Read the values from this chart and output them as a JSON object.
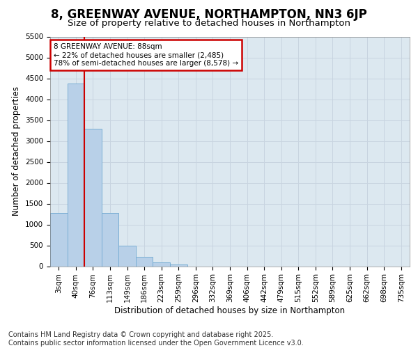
{
  "title": "8, GREENWAY AVENUE, NORTHAMPTON, NN3 6JP",
  "subtitle": "Size of property relative to detached houses in Northampton",
  "xlabel": "Distribution of detached houses by size in Northampton",
  "ylabel": "Number of detached properties",
  "categories": [
    "3sqm",
    "40sqm",
    "76sqm",
    "113sqm",
    "149sqm",
    "186sqm",
    "223sqm",
    "259sqm",
    "296sqm",
    "332sqm",
    "369sqm",
    "406sqm",
    "442sqm",
    "479sqm",
    "515sqm",
    "552sqm",
    "589sqm",
    "625sqm",
    "662sqm",
    "698sqm",
    "735sqm"
  ],
  "values": [
    1270,
    4380,
    3300,
    1280,
    500,
    230,
    90,
    50,
    0,
    0,
    0,
    0,
    0,
    0,
    0,
    0,
    0,
    0,
    0,
    0,
    0
  ],
  "bar_color": "#b8d0e8",
  "bar_edge_color": "#7aaed4",
  "vline_x_idx": 2,
  "vline_color": "#cc0000",
  "annotation_box_text": "8 GREENWAY AVENUE: 88sqm\n← 22% of detached houses are smaller (2,485)\n78% of semi-detached houses are larger (8,578) →",
  "annotation_box_color": "#cc0000",
  "annotation_bg_color": "#ffffff",
  "ylim": [
    0,
    5500
  ],
  "yticks": [
    0,
    500,
    1000,
    1500,
    2000,
    2500,
    3000,
    3500,
    4000,
    4500,
    5000,
    5500
  ],
  "grid_color": "#c8d4e0",
  "bg_color": "#dce8f0",
  "footer_line1": "Contains HM Land Registry data © Crown copyright and database right 2025.",
  "footer_line2": "Contains public sector information licensed under the Open Government Licence v3.0.",
  "title_fontsize": 12,
  "subtitle_fontsize": 9.5,
  "footer_fontsize": 7,
  "axis_label_fontsize": 8.5,
  "tick_fontsize": 7.5
}
